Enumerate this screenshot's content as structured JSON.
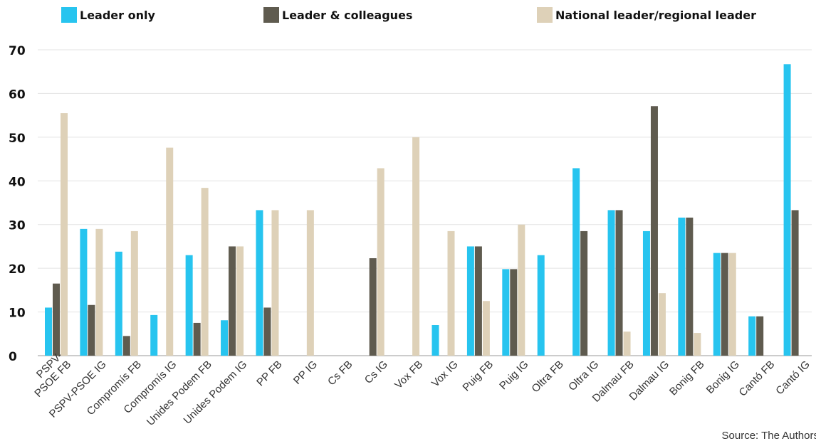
{
  "chart_data": {
    "type": "bar",
    "categories": [
      "PSPV-PSOE FB",
      "PSPV-PSOE IG",
      "Compromís FB",
      "Compromís IG",
      "Unides Podem FB",
      "Unides Podem IG",
      "PP FB",
      "PP IG",
      "Cs FB",
      "Cs IG",
      "Vox FB",
      "Vox IG",
      "Puig FB",
      "Puig IG",
      "Oltra FB",
      "Oltra IG",
      "Dalmau FB",
      "Dalmau IG",
      "Bonig FB",
      "Bonig IG",
      "Cantó FB",
      "Cantó IG"
    ],
    "category_lines": [
      [
        "PSPV-",
        "PSOE FB"
      ],
      [
        "PSPV-PSOE IG"
      ],
      [
        "Compromís FB"
      ],
      [
        "Compromís IG"
      ],
      [
        "Unides Podem FB"
      ],
      [
        "Unides Podem IG"
      ],
      [
        "PP FB"
      ],
      [
        "PP IG"
      ],
      [
        "Cs FB"
      ],
      [
        "Cs IG"
      ],
      [
        "Vox FB"
      ],
      [
        "Vox IG"
      ],
      [
        "Puig FB"
      ],
      [
        "Puig IG"
      ],
      [
        "Oltra FB"
      ],
      [
        "Oltra IG"
      ],
      [
        "Dalmau FB"
      ],
      [
        "Dalmau IG"
      ],
      [
        "Bonig FB"
      ],
      [
        "Bonig IG"
      ],
      [
        "Cantó FB"
      ],
      [
        "Cantó IG"
      ]
    ],
    "series": [
      {
        "name": "Leader only",
        "color": "#27c4ef",
        "values": [
          11,
          29,
          23.8,
          9.3,
          23,
          8.1,
          33.3,
          0,
          0,
          0,
          0,
          7,
          25,
          19.8,
          23,
          42.9,
          33.3,
          28.5,
          31.6,
          23.5,
          9,
          66.7
        ]
      },
      {
        "name": "Leader & colleagues",
        "color": "#5f5b4f",
        "values": [
          16.5,
          11.6,
          4.5,
          0,
          7.5,
          25,
          11,
          0,
          0,
          22.3,
          0,
          0,
          25,
          19.8,
          0,
          28.5,
          33.3,
          57.1,
          31.6,
          23.5,
          9,
          33.3
        ]
      },
      {
        "name": "National leader/regional leader",
        "color": "#ded1b8",
        "values": [
          55.5,
          29,
          28.5,
          47.6,
          38.4,
          25,
          33.3,
          33.3,
          0,
          42.9,
          50,
          28.5,
          12.5,
          30,
          0,
          0,
          5.5,
          14.3,
          5.2,
          23.5,
          0,
          0
        ]
      }
    ],
    "yticks": [
      0,
      10,
      20,
      30,
      40,
      50,
      60,
      70
    ],
    "ylim": [
      0,
      70
    ],
    "grid": true,
    "legend_position": "top"
  },
  "source": "Source: The Authors"
}
